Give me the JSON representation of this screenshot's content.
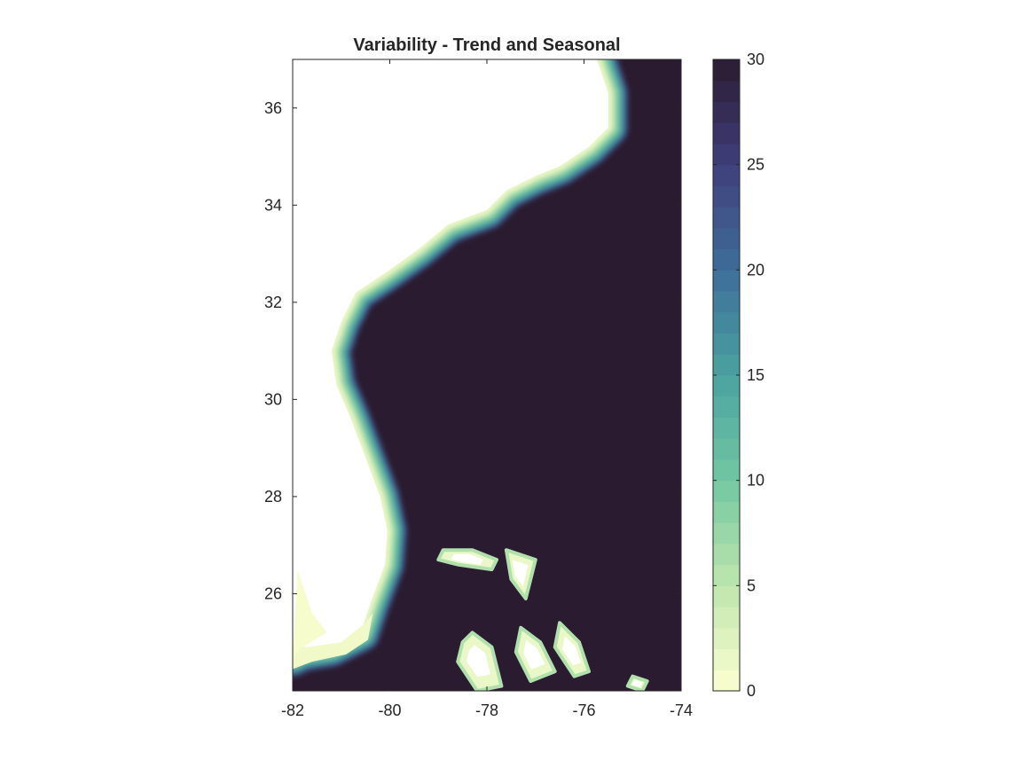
{
  "chart_data": {
    "type": "heatmap",
    "title": "Variability - Trend and Seasonal",
    "xlabel": "",
    "ylabel": "",
    "xlim": [
      -82,
      -74
    ],
    "ylim": [
      24,
      37
    ],
    "x_ticks": [
      -82,
      -80,
      -78,
      -76,
      -74
    ],
    "x_tick_labels": [
      "-82",
      "-80",
      "-78",
      "-76",
      "-74"
    ],
    "y_ticks": [
      26,
      28,
      30,
      32,
      34,
      36
    ],
    "y_tick_labels": [
      "26",
      "28",
      "30",
      "32",
      "34",
      "36"
    ],
    "grid": false,
    "colorbar": {
      "range": [
        0,
        30
      ],
      "levels": 30,
      "ticks": [
        0,
        5,
        10,
        15,
        20,
        25,
        30
      ],
      "tick_labels": [
        "0",
        "5",
        "10",
        "15",
        "20",
        "25",
        "30"
      ],
      "colormap_stops": [
        {
          "value": 0,
          "color": "#fdfed0"
        },
        {
          "value": 5,
          "color": "#bfe6ad"
        },
        {
          "value": 10,
          "color": "#72c7a2"
        },
        {
          "value": 15,
          "color": "#4aa2a0"
        },
        {
          "value": 20,
          "color": "#3e6e9a"
        },
        {
          "value": 25,
          "color": "#3f3f7b"
        },
        {
          "value": 30,
          "color": "#2b1b30"
        }
      ]
    },
    "description_of_field": {
      "land_value": null,
      "deep_ocean_value": 30,
      "coastal_gradient": [
        0,
        30
      ]
    },
    "coastline": [
      [
        -82.0,
        24.7
      ],
      [
        -81.8,
        24.8
      ],
      [
        -81.2,
        24.9
      ],
      [
        -80.6,
        25.2
      ],
      [
        -80.4,
        25.8
      ],
      [
        -80.1,
        26.6
      ],
      [
        -80.05,
        27.3
      ],
      [
        -80.2,
        28.0
      ],
      [
        -80.5,
        28.8
      ],
      [
        -80.8,
        29.6
      ],
      [
        -81.1,
        30.3
      ],
      [
        -81.2,
        31.0
      ],
      [
        -81.0,
        31.6
      ],
      [
        -80.7,
        32.2
      ],
      [
        -80.1,
        32.6
      ],
      [
        -79.4,
        33.1
      ],
      [
        -78.8,
        33.6
      ],
      [
        -78.0,
        33.9
      ],
      [
        -77.6,
        34.3
      ],
      [
        -77.0,
        34.6
      ],
      [
        -76.5,
        34.8
      ],
      [
        -75.9,
        35.2
      ],
      [
        -75.5,
        35.6
      ],
      [
        -75.5,
        36.3
      ],
      [
        -75.7,
        36.9
      ],
      [
        -75.75,
        37.0
      ]
    ],
    "islands": [
      [
        [
          -78.9,
          26.9
        ],
        [
          -78.3,
          26.9
        ],
        [
          -77.8,
          26.7
        ],
        [
          -77.9,
          26.5
        ],
        [
          -78.6,
          26.6
        ],
        [
          -79.0,
          26.7
        ]
      ],
      [
        [
          -77.6,
          26.9
        ],
        [
          -77.0,
          26.7
        ],
        [
          -77.2,
          25.9
        ],
        [
          -77.5,
          26.3
        ]
      ],
      [
        [
          -78.3,
          25.2
        ],
        [
          -77.9,
          24.9
        ],
        [
          -77.7,
          24.1
        ],
        [
          -78.2,
          24.0
        ],
        [
          -78.6,
          24.6
        ],
        [
          -78.5,
          25.0
        ]
      ],
      [
        [
          -77.3,
          25.3
        ],
        [
          -76.9,
          25.0
        ],
        [
          -76.6,
          24.4
        ],
        [
          -77.1,
          24.2
        ],
        [
          -77.4,
          24.8
        ]
      ],
      [
        [
          -76.5,
          25.4
        ],
        [
          -76.1,
          25.0
        ],
        [
          -75.9,
          24.4
        ],
        [
          -76.2,
          24.3
        ],
        [
          -76.6,
          24.9
        ]
      ],
      [
        [
          -75.1,
          24.1
        ],
        [
          -74.8,
          24.0
        ],
        [
          -74.7,
          24.2
        ],
        [
          -75.0,
          24.3
        ]
      ]
    ]
  }
}
